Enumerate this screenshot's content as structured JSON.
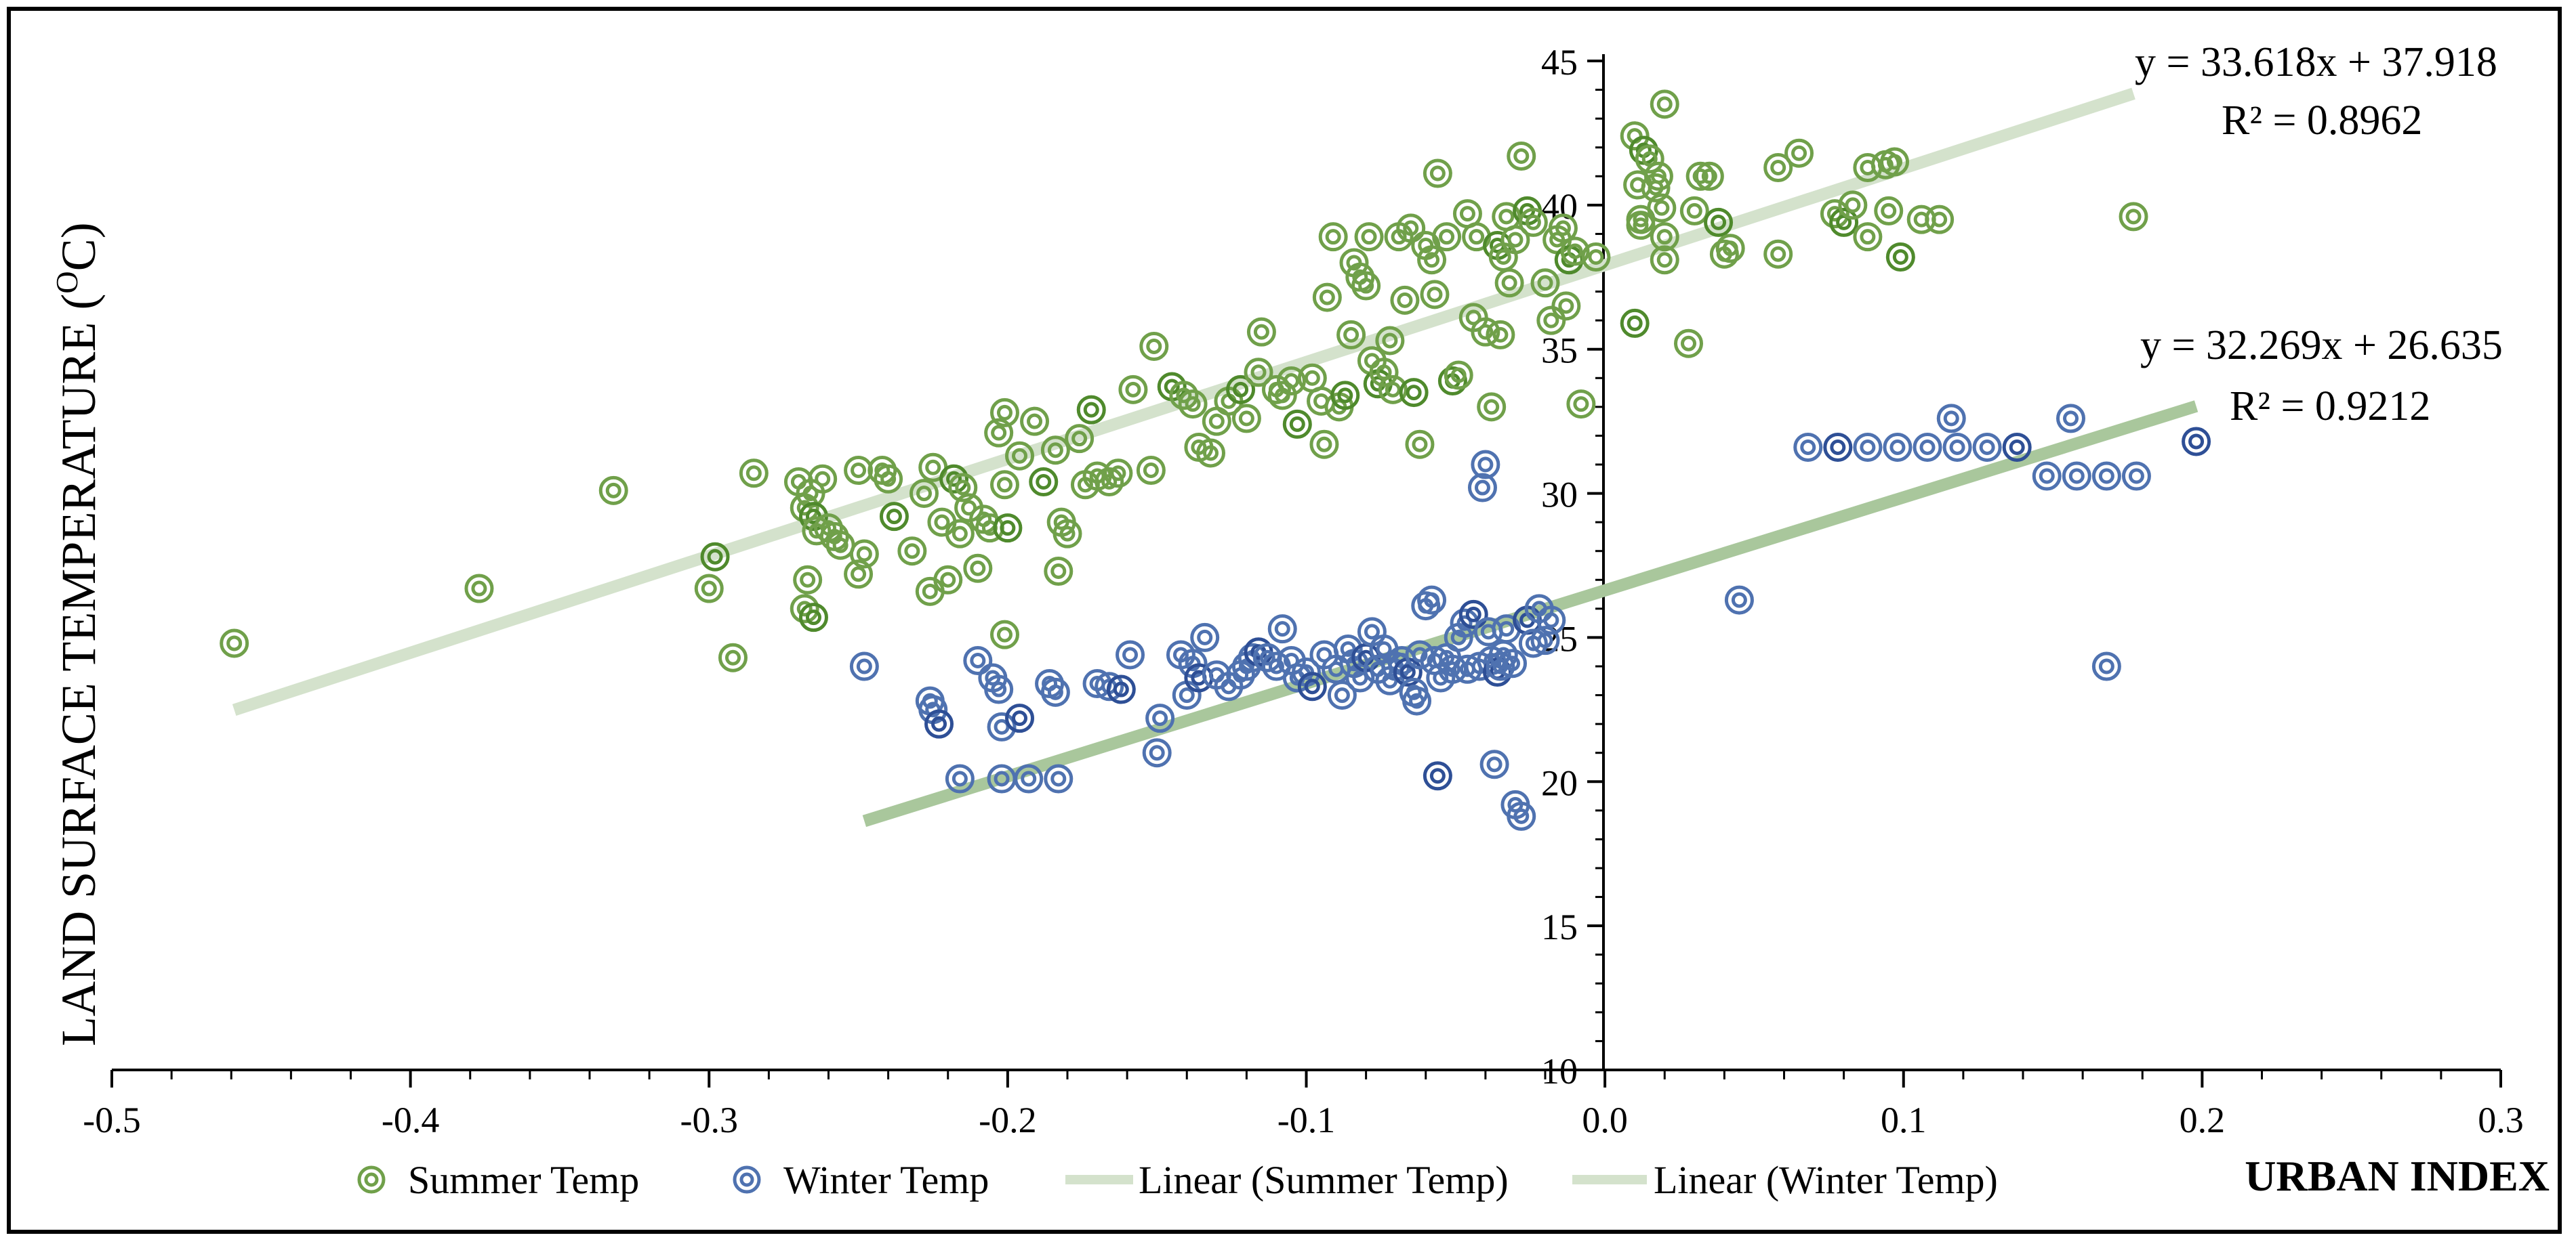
{
  "chart_data": {
    "type": "scatter",
    "title": "",
    "xlabel": "URBAN INDEX",
    "ylabel": "LAND SURFACE TEMPERATURE (",
    "ylabel_sup": "O",
    "ylabel_unit": "C)",
    "xlim": [
      -0.5,
      0.3
    ],
    "ylim": [
      10,
      45
    ],
    "x_ticks": [
      "-0.5",
      "-0.4",
      "-0.3",
      "-0.2",
      "-0.1",
      "0.0",
      "0.1",
      "0.2",
      "0.3"
    ],
    "x_tick_values": [
      -0.5,
      -0.4,
      -0.3,
      -0.2,
      -0.1,
      0.0,
      0.1,
      0.2,
      0.3
    ],
    "y_ticks": [
      "10",
      "15",
      "20",
      "25",
      "30",
      "35",
      "40",
      "45"
    ],
    "y_tick_values": [
      10,
      15,
      20,
      25,
      30,
      35,
      40,
      45
    ],
    "colors": {
      "summer": "#70a04a",
      "summer_dark": "#4f8a2c",
      "winter": "#4f72b0",
      "winter_dark": "#2e4f96",
      "summer_trend": "#d4e2cc",
      "winter_trend": "#a9c79c"
    },
    "series": [
      {
        "name": "Summer Temp",
        "marker": "double-circle",
        "points": [
          [
            -0.459,
            24.8
          ],
          [
            -0.377,
            26.7
          ],
          [
            -0.332,
            30.1
          ],
          [
            -0.298,
            27.8
          ],
          [
            -0.3,
            26.7
          ],
          [
            -0.292,
            24.3
          ],
          [
            -0.285,
            30.7
          ],
          [
            -0.27,
            30.4
          ],
          [
            -0.268,
            29.5
          ],
          [
            -0.266,
            30.0
          ],
          [
            -0.265,
            29.2
          ],
          [
            -0.264,
            28.7
          ],
          [
            -0.262,
            30.5
          ],
          [
            -0.26,
            28.8
          ],
          [
            -0.258,
            28.5
          ],
          [
            -0.256,
            28.2
          ],
          [
            -0.268,
            26.0
          ],
          [
            -0.265,
            25.7
          ],
          [
            -0.267,
            27.0
          ],
          [
            -0.25,
            30.8
          ],
          [
            -0.25,
            27.2
          ],
          [
            -0.248,
            27.9
          ],
          [
            -0.242,
            30.8
          ],
          [
            -0.24,
            30.5
          ],
          [
            -0.238,
            29.2
          ],
          [
            -0.232,
            28.0
          ],
          [
            -0.228,
            30.0
          ],
          [
            -0.226,
            26.6
          ],
          [
            -0.225,
            30.9
          ],
          [
            -0.222,
            29.0
          ],
          [
            -0.22,
            27.0
          ],
          [
            -0.218,
            30.5
          ],
          [
            -0.216,
            28.6
          ],
          [
            -0.215,
            30.2
          ],
          [
            -0.213,
            29.5
          ],
          [
            -0.21,
            27.4
          ],
          [
            -0.208,
            29.1
          ],
          [
            -0.206,
            28.8
          ],
          [
            -0.2,
            28.8
          ],
          [
            -0.203,
            32.1
          ],
          [
            -0.201,
            32.8
          ],
          [
            -0.201,
            30.3
          ],
          [
            -0.201,
            25.1
          ],
          [
            -0.196,
            31.3
          ],
          [
            -0.191,
            32.5
          ],
          [
            -0.188,
            30.4
          ],
          [
            -0.184,
            31.5
          ],
          [
            -0.183,
            27.3
          ],
          [
            -0.182,
            29.0
          ],
          [
            -0.18,
            28.6
          ],
          [
            -0.176,
            31.9
          ],
          [
            -0.174,
            30.3
          ],
          [
            -0.172,
            32.9
          ],
          [
            -0.17,
            30.6
          ],
          [
            -0.166,
            30.4
          ],
          [
            -0.163,
            30.7
          ],
          [
            -0.158,
            33.6
          ],
          [
            -0.152,
            30.8
          ],
          [
            -0.151,
            35.1
          ],
          [
            -0.145,
            33.7
          ],
          [
            -0.141,
            33.4
          ],
          [
            -0.138,
            33.1
          ],
          [
            -0.136,
            31.6
          ],
          [
            -0.132,
            31.4
          ],
          [
            -0.13,
            32.5
          ],
          [
            -0.126,
            33.2
          ],
          [
            -0.122,
            33.6
          ],
          [
            -0.12,
            32.6
          ],
          [
            -0.116,
            34.2
          ],
          [
            -0.115,
            35.6
          ],
          [
            -0.11,
            33.6
          ],
          [
            -0.108,
            33.4
          ],
          [
            -0.105,
            33.9
          ],
          [
            -0.103,
            32.4
          ],
          [
            -0.098,
            34.0
          ],
          [
            -0.095,
            33.2
          ],
          [
            -0.094,
            31.7
          ],
          [
            -0.093,
            36.8
          ],
          [
            -0.091,
            38.9
          ],
          [
            -0.089,
            33.0
          ],
          [
            -0.087,
            33.4
          ],
          [
            -0.085,
            35.5
          ],
          [
            -0.084,
            38.0
          ],
          [
            -0.082,
            37.5
          ],
          [
            -0.08,
            37.2
          ],
          [
            -0.079,
            38.9
          ],
          [
            -0.078,
            34.6
          ],
          [
            -0.076,
            33.8
          ],
          [
            -0.074,
            34.2
          ],
          [
            -0.072,
            35.3
          ],
          [
            -0.071,
            33.6
          ],
          [
            -0.069,
            38.9
          ],
          [
            -0.067,
            36.7
          ],
          [
            -0.065,
            39.2
          ],
          [
            -0.064,
            33.5
          ],
          [
            -0.062,
            31.7
          ],
          [
            -0.06,
            38.6
          ],
          [
            -0.058,
            38.1
          ],
          [
            -0.057,
            36.9
          ],
          [
            -0.056,
            41.1
          ],
          [
            -0.053,
            38.9
          ],
          [
            -0.051,
            33.9
          ],
          [
            -0.049,
            34.1
          ],
          [
            -0.046,
            39.7
          ],
          [
            -0.044,
            36.1
          ],
          [
            -0.043,
            38.9
          ],
          [
            -0.04,
            35.6
          ],
          [
            -0.038,
            33.0
          ],
          [
            -0.036,
            38.6
          ],
          [
            -0.035,
            35.5
          ],
          [
            -0.034,
            38.2
          ],
          [
            -0.033,
            39.6
          ],
          [
            -0.032,
            37.3
          ],
          [
            -0.03,
            38.8
          ],
          [
            -0.028,
            41.7
          ],
          [
            -0.026,
            39.8
          ],
          [
            -0.024,
            39.4
          ],
          [
            -0.02,
            37.3
          ],
          [
            -0.018,
            36.0
          ],
          [
            -0.016,
            38.8
          ],
          [
            -0.014,
            39.2
          ],
          [
            -0.013,
            36.5
          ],
          [
            -0.012,
            38.1
          ],
          [
            -0.01,
            38.4
          ],
          [
            -0.008,
            33.1
          ],
          [
            -0.003,
            38.2
          ],
          [
            0.01,
            42.4
          ],
          [
            0.011,
            40.7
          ],
          [
            0.012,
            39.5
          ],
          [
            0.013,
            41.9
          ],
          [
            0.015,
            41.6
          ],
          [
            0.017,
            40.6
          ],
          [
            0.018,
            41.0
          ],
          [
            0.019,
            39.9
          ],
          [
            0.02,
            43.5
          ],
          [
            0.02,
            38.1
          ],
          [
            0.01,
            35.9
          ],
          [
            0.012,
            39.3
          ],
          [
            0.02,
            38.9
          ],
          [
            0.028,
            35.2
          ],
          [
            0.03,
            39.8
          ],
          [
            0.032,
            41.0
          ],
          [
            0.035,
            41.0
          ],
          [
            0.038,
            39.4
          ],
          [
            0.04,
            38.3
          ],
          [
            0.042,
            38.5
          ],
          [
            0.058,
            41.3
          ],
          [
            0.058,
            38.3
          ],
          [
            0.065,
            41.8
          ],
          [
            0.077,
            39.7
          ],
          [
            0.08,
            39.4
          ],
          [
            0.083,
            40.0
          ],
          [
            0.088,
            38.9
          ],
          [
            0.088,
            41.3
          ],
          [
            0.094,
            41.4
          ],
          [
            0.095,
            39.8
          ],
          [
            0.097,
            41.5
          ],
          [
            0.099,
            38.2
          ],
          [
            0.106,
            39.5
          ],
          [
            0.112,
            39.5
          ],
          [
            0.177,
            39.6
          ]
        ]
      },
      {
        "name": "Winter Temp",
        "marker": "double-circle",
        "points": [
          [
            -0.248,
            24.0
          ],
          [
            -0.226,
            22.8
          ],
          [
            -0.225,
            22.5
          ],
          [
            -0.223,
            22.0
          ],
          [
            -0.216,
            20.1
          ],
          [
            -0.21,
            24.2
          ],
          [
            -0.205,
            23.6
          ],
          [
            -0.203,
            23.2
          ],
          [
            -0.202,
            21.9
          ],
          [
            -0.202,
            20.1
          ],
          [
            -0.196,
            22.2
          ],
          [
            -0.193,
            20.1
          ],
          [
            -0.186,
            23.4
          ],
          [
            -0.184,
            23.1
          ],
          [
            -0.183,
            20.1
          ],
          [
            -0.17,
            23.4
          ],
          [
            -0.166,
            23.3
          ],
          [
            -0.162,
            23.2
          ],
          [
            -0.159,
            24.4
          ],
          [
            -0.15,
            21.0
          ],
          [
            -0.149,
            22.2
          ],
          [
            -0.142,
            24.4
          ],
          [
            -0.14,
            23.0
          ],
          [
            -0.138,
            24.1
          ],
          [
            -0.136,
            23.6
          ],
          [
            -0.134,
            25.0
          ],
          [
            -0.13,
            23.7
          ],
          [
            -0.126,
            23.3
          ],
          [
            -0.122,
            23.7
          ],
          [
            -0.12,
            24.0
          ],
          [
            -0.118,
            24.3
          ],
          [
            -0.116,
            24.5
          ],
          [
            -0.113,
            24.3
          ],
          [
            -0.11,
            24.0
          ],
          [
            -0.108,
            25.3
          ],
          [
            -0.105,
            24.2
          ],
          [
            -0.103,
            23.6
          ],
          [
            -0.1,
            23.8
          ],
          [
            -0.098,
            23.3
          ],
          [
            -0.094,
            24.4
          ],
          [
            -0.09,
            23.9
          ],
          [
            -0.088,
            23.0
          ],
          [
            -0.086,
            24.6
          ],
          [
            -0.084,
            24.1
          ],
          [
            -0.082,
            23.6
          ],
          [
            -0.08,
            24.3
          ],
          [
            -0.078,
            25.2
          ],
          [
            -0.076,
            23.9
          ],
          [
            -0.074,
            24.6
          ],
          [
            -0.072,
            23.5
          ],
          [
            -0.07,
            24.0
          ],
          [
            -0.068,
            24.2
          ],
          [
            -0.066,
            23.8
          ],
          [
            -0.064,
            23.1
          ],
          [
            -0.063,
            22.8
          ],
          [
            -0.062,
            24.4
          ],
          [
            -0.06,
            26.1
          ],
          [
            -0.058,
            26.3
          ],
          [
            -0.057,
            24.2
          ],
          [
            -0.056,
            20.2
          ],
          [
            -0.055,
            23.6
          ],
          [
            -0.053,
            24.3
          ],
          [
            -0.051,
            23.9
          ],
          [
            -0.049,
            25.0
          ],
          [
            -0.047,
            25.5
          ],
          [
            -0.046,
            23.9
          ],
          [
            -0.044,
            25.8
          ],
          [
            -0.042,
            24.0
          ],
          [
            -0.041,
            30.2
          ],
          [
            -0.04,
            31.0
          ],
          [
            -0.039,
            25.2
          ],
          [
            -0.038,
            24.2
          ],
          [
            -0.037,
            20.6
          ],
          [
            -0.036,
            23.8
          ],
          [
            -0.035,
            24.0
          ],
          [
            -0.034,
            24.4
          ],
          [
            -0.033,
            25.3
          ],
          [
            -0.031,
            24.1
          ],
          [
            -0.03,
            19.2
          ],
          [
            -0.028,
            18.8
          ],
          [
            -0.026,
            25.6
          ],
          [
            -0.024,
            24.8
          ],
          [
            -0.022,
            26.0
          ],
          [
            -0.02,
            24.9
          ],
          [
            -0.018,
            25.6
          ],
          [
            0.045,
            26.3
          ],
          [
            0.068,
            31.6
          ],
          [
            0.078,
            31.6
          ],
          [
            0.088,
            31.6
          ],
          [
            0.098,
            31.6
          ],
          [
            0.108,
            31.6
          ],
          [
            0.116,
            32.6
          ],
          [
            0.118,
            31.6
          ],
          [
            0.128,
            31.6
          ],
          [
            0.138,
            31.6
          ],
          [
            0.148,
            30.6
          ],
          [
            0.156,
            32.6
          ],
          [
            0.158,
            30.6
          ],
          [
            0.168,
            30.6
          ],
          [
            0.168,
            24.0
          ],
          [
            0.178,
            30.6
          ],
          [
            0.198,
            31.8
          ]
        ]
      }
    ],
    "trendlines": [
      {
        "name": "Linear (Summer Temp)",
        "equation": "y = 33.618x + 37.918",
        "r2": "R² = 0.8962",
        "slope": 33.618,
        "intercept": 37.918,
        "x_range": [
          -0.459,
          0.177
        ]
      },
      {
        "name": "Linear (Winter Temp)",
        "equation": "y = 32.269x + 26.635",
        "r2": "R² = 0.9212",
        "slope": 32.269,
        "intercept": 26.635,
        "x_range": [
          -0.248,
          0.198
        ]
      }
    ],
    "legend": {
      "placement": "bottom",
      "items": [
        "Summer Temp",
        "Winter Temp",
        "Linear (Summer Temp)",
        "Linear (Winter Temp)"
      ]
    },
    "grid": false
  }
}
